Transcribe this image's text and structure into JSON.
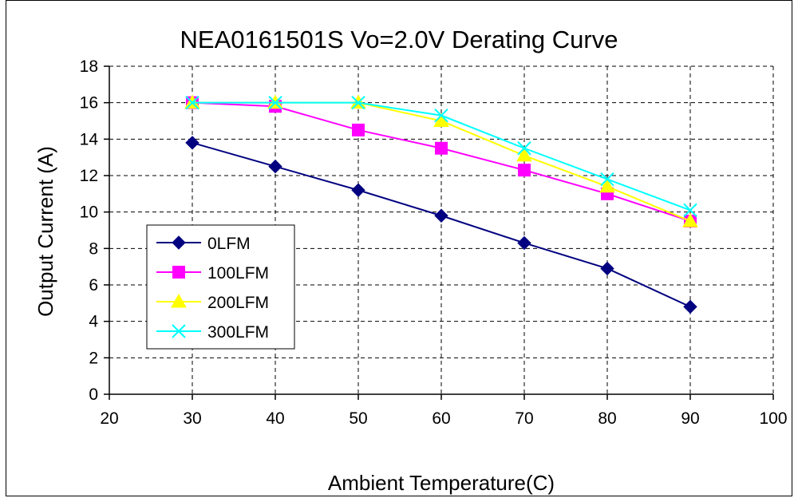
{
  "chart_data": {
    "type": "line",
    "title": "NEA0161501S Vo=2.0V Derating Curve",
    "xlabel": "Ambient Temperature(C)",
    "ylabel": "Output Current (A)",
    "xlim": [
      20,
      100
    ],
    "ylim": [
      0,
      18
    ],
    "xticks": [
      20,
      30,
      40,
      50,
      60,
      70,
      80,
      90,
      100
    ],
    "yticks": [
      0,
      2,
      4,
      6,
      8,
      10,
      12,
      14,
      16,
      18
    ],
    "grid": true,
    "legend_position": "left",
    "x": [
      30,
      40,
      50,
      60,
      70,
      80,
      90
    ],
    "series": [
      {
        "name": "0LFM",
        "color": "#000080",
        "marker": "diamond",
        "values": [
          13.8,
          12.5,
          11.2,
          9.8,
          8.3,
          6.9,
          4.8
        ]
      },
      {
        "name": "100LFM",
        "color": "#ff00ff",
        "marker": "square",
        "values": [
          16.0,
          15.8,
          14.5,
          13.5,
          12.3,
          11.0,
          9.5
        ]
      },
      {
        "name": "200LFM",
        "color": "#ffff00",
        "marker": "triangle",
        "values": [
          16.0,
          16.0,
          16.0,
          15.0,
          13.1,
          11.4,
          9.5
        ]
      },
      {
        "name": "300LFM",
        "color": "#00ffff",
        "marker": "x",
        "values": [
          16.0,
          16.0,
          16.0,
          15.3,
          13.5,
          11.8,
          10.1
        ]
      }
    ]
  }
}
